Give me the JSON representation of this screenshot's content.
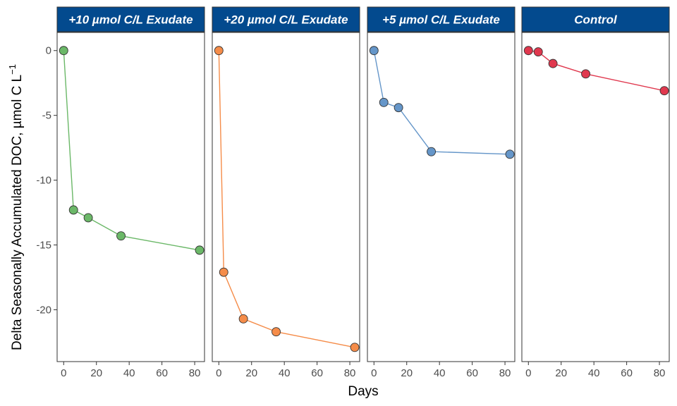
{
  "chart_data": {
    "type": "line",
    "xlabel": "Days",
    "ylabel": "Delta Seasonally Accumulated DOC, µmol C L",
    "ylabel_superscript": "−1",
    "xlim": [
      -4,
      86
    ],
    "ylim": [
      -24,
      1.4
    ],
    "x_ticks": [
      0,
      20,
      40,
      60,
      80
    ],
    "y_ticks": [
      0,
      -5,
      -10,
      -15,
      -20
    ],
    "grid": false,
    "strip_color": "#034A8E",
    "panels": [
      {
        "title": "+10 µmol C/L Exudate",
        "color": "#6BB868",
        "x": [
          0,
          6,
          15,
          35,
          83
        ],
        "y": [
          0,
          -12.3,
          -12.9,
          -14.3,
          -15.4
        ]
      },
      {
        "title": "+20 µmol C/L Exudate",
        "color": "#F58C49",
        "x": [
          0,
          3,
          15,
          35,
          83
        ],
        "y": [
          0,
          -17.1,
          -20.7,
          -21.7,
          -22.9
        ]
      },
      {
        "title": "+5 µmol C/L Exudate",
        "color": "#6596C9",
        "x": [
          0,
          6,
          15,
          35,
          83
        ],
        "y": [
          0,
          -4.0,
          -4.4,
          -7.8,
          -8.0
        ]
      },
      {
        "title": "Control",
        "color": "#E0384E",
        "x": [
          0,
          6,
          15,
          35,
          83
        ],
        "y": [
          0,
          -0.1,
          -1.0,
          -1.8,
          -3.1
        ]
      }
    ]
  }
}
